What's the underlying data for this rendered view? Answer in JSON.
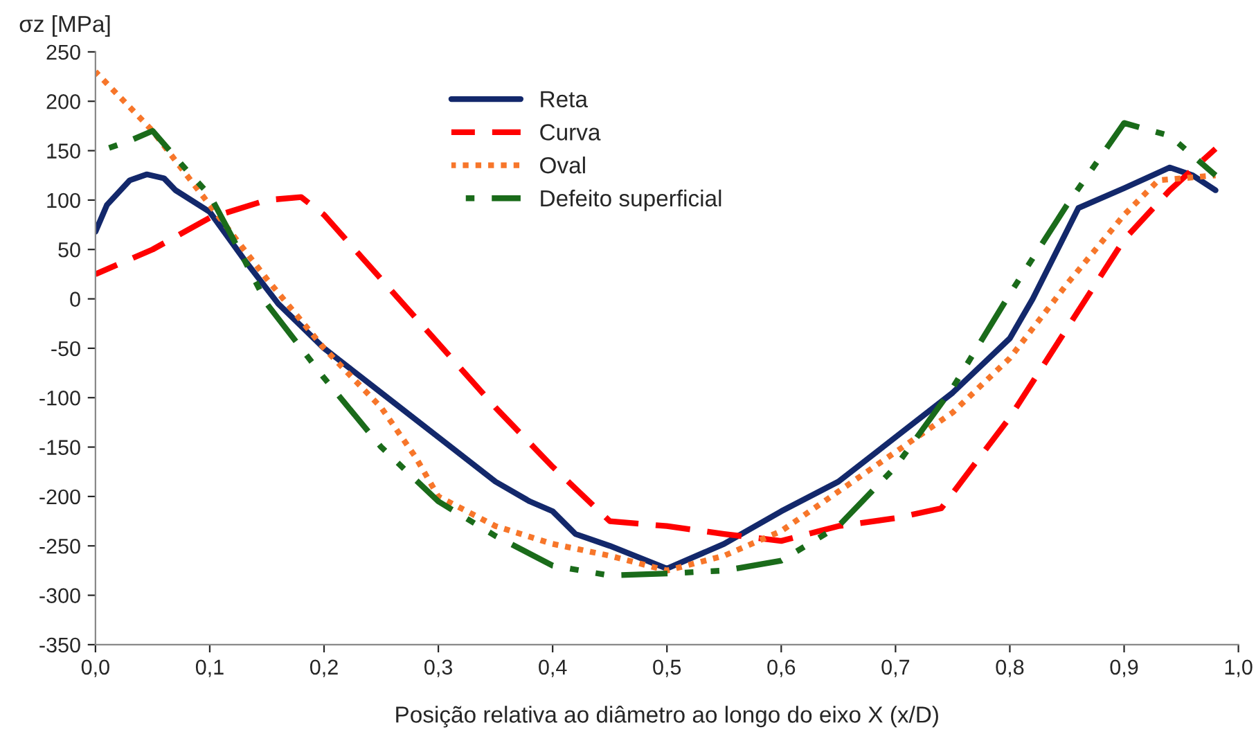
{
  "chart_data": {
    "type": "line",
    "ylabel": "σz [MPa]",
    "xlabel": "Posição relativa ao diâmetro ao longo do eixo X (x/D)",
    "xlim": [
      0,
      1
    ],
    "xticks": [
      {
        "value": 0,
        "label": "0,0"
      },
      {
        "value": 0.1,
        "label": "0,1"
      },
      {
        "value": 0.2,
        "label": "0,2"
      },
      {
        "value": 0.3,
        "label": "0,3"
      },
      {
        "value": 0.4,
        "label": "0,4"
      },
      {
        "value": 0.5,
        "label": "0,5"
      },
      {
        "value": 0.6,
        "label": "0,6"
      },
      {
        "value": 0.7,
        "label": "0,7"
      },
      {
        "value": 0.8,
        "label": "0,8"
      },
      {
        "value": 0.9,
        "label": "0,9"
      },
      {
        "value": 1,
        "label": "1,0"
      }
    ],
    "ylim": [
      -350,
      250
    ],
    "yticks": [
      -350,
      -300,
      -250,
      -200,
      -150,
      -100,
      -50,
      0,
      50,
      100,
      150,
      200,
      250
    ],
    "grid": false,
    "legend": "top",
    "series": [
      {
        "name": "Reta",
        "color": "#13286b",
        "line_style": "solid",
        "x": [
          0,
          0.01,
          0.03,
          0.045,
          0.06,
          0.07,
          0.1,
          0.13,
          0.16,
          0.2,
          0.25,
          0.3,
          0.35,
          0.38,
          0.4,
          0.42,
          0.45,
          0.5,
          0.55,
          0.6,
          0.65,
          0.7,
          0.75,
          0.8,
          0.82,
          0.86,
          0.9,
          0.94,
          0.96,
          0.98
        ],
        "values": [
          68,
          95,
          120,
          126,
          122,
          110,
          88,
          40,
          -5,
          -50,
          -95,
          -140,
          -185,
          -205,
          -215,
          -238,
          -250,
          -273,
          -248,
          -215,
          -185,
          -140,
          -95,
          -40,
          0,
          92,
          112,
          133,
          125,
          110
        ]
      },
      {
        "name": "Curva",
        "color": "#ff0000",
        "line_style": "dashed",
        "x": [
          0,
          0.05,
          0.1,
          0.15,
          0.18,
          0.2,
          0.25,
          0.3,
          0.35,
          0.4,
          0.45,
          0.5,
          0.55,
          0.6,
          0.65,
          0.7,
          0.74,
          0.8,
          0.85,
          0.9,
          0.94,
          0.98
        ],
        "values": [
          25,
          50,
          82,
          100,
          103,
          85,
          20,
          -45,
          -110,
          -170,
          -225,
          -230,
          -238,
          -245,
          -230,
          -222,
          -212,
          -120,
          -30,
          60,
          110,
          152
        ]
      },
      {
        "name": "Oval",
        "color": "#f7762a",
        "line_style": "dotted",
        "x": [
          0,
          0.05,
          0.1,
          0.15,
          0.2,
          0.25,
          0.28,
          0.3,
          0.35,
          0.4,
          0.45,
          0.5,
          0.55,
          0.6,
          0.65,
          0.7,
          0.75,
          0.8,
          0.85,
          0.9,
          0.93,
          0.98
        ],
        "values": [
          230,
          170,
          95,
          20,
          -50,
          -110,
          -160,
          -200,
          -230,
          -248,
          -260,
          -275,
          -260,
          -235,
          -195,
          -155,
          -115,
          -60,
          15,
          85,
          120,
          125
        ]
      },
      {
        "name": "Defeito superficial",
        "color": "#1a6b1a",
        "line_style": "dashdot",
        "x": [
          0,
          0.03,
          0.05,
          0.08,
          0.1,
          0.13,
          0.15,
          0.2,
          0.25,
          0.3,
          0.35,
          0.4,
          0.45,
          0.5,
          0.55,
          0.6,
          0.65,
          0.7,
          0.75,
          0.8,
          0.85,
          0.9,
          0.94,
          0.98
        ],
        "values": [
          148,
          160,
          170,
          130,
          105,
          40,
          -5,
          -80,
          -150,
          -205,
          -240,
          -270,
          -280,
          -278,
          -275,
          -265,
          -230,
          -170,
          -90,
          5,
          95,
          178,
          165,
          125
        ]
      }
    ]
  }
}
